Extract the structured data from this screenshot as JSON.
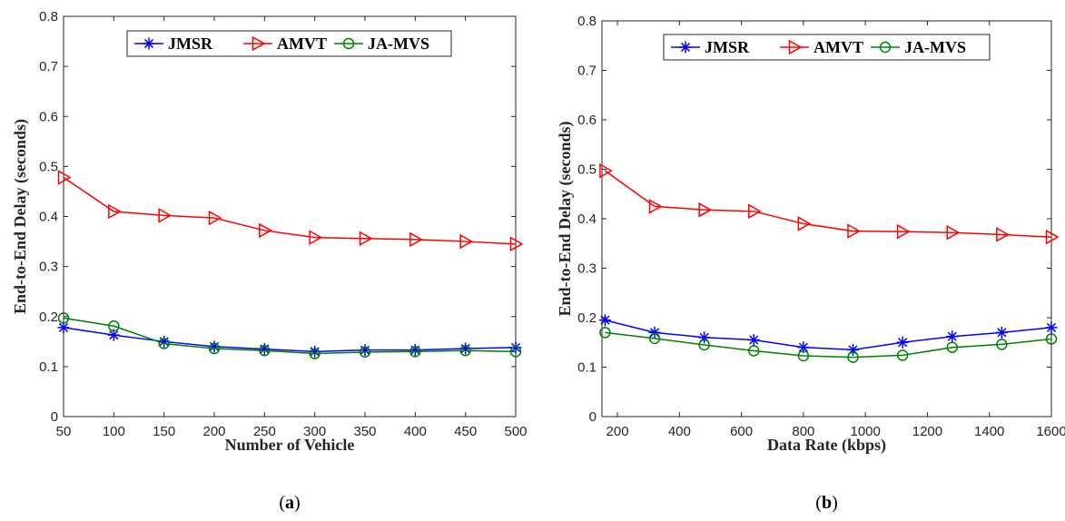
{
  "chart_data": [
    {
      "type": "line",
      "panel_label": "a",
      "xlabel": "Number of Vehicle",
      "ylabel": "End-to-End Delay (seconds)",
      "xlim": [
        50,
        500
      ],
      "ylim": [
        0,
        0.8
      ],
      "xticks": [
        50,
        100,
        150,
        200,
        250,
        300,
        350,
        400,
        450,
        500
      ],
      "yticks": [
        0,
        0.1,
        0.2,
        0.3,
        0.4,
        0.5,
        0.6,
        0.7,
        0.8
      ],
      "legend_position": "top-center",
      "x": [
        50,
        100,
        150,
        200,
        250,
        300,
        350,
        400,
        450,
        500
      ],
      "series": [
        {
          "name": "JMSR",
          "color": "#0000ff",
          "marker": "asterisk",
          "values": [
            0.178,
            0.163,
            0.15,
            0.14,
            0.135,
            0.13,
            0.133,
            0.133,
            0.136,
            0.138
          ]
        },
        {
          "name": "AMVT",
          "color": "#ff0000",
          "marker": "triangle-right",
          "values": [
            0.478,
            0.41,
            0.402,
            0.397,
            0.372,
            0.358,
            0.356,
            0.354,
            0.35,
            0.345
          ]
        },
        {
          "name": "JA-MVS",
          "color": "#008000",
          "marker": "circle",
          "values": [
            0.197,
            0.181,
            0.146,
            0.136,
            0.132,
            0.126,
            0.129,
            0.13,
            0.132,
            0.13
          ]
        }
      ]
    },
    {
      "type": "line",
      "panel_label": "b",
      "xlabel": "Data Rate (kbps)",
      "ylabel": "End-to-End Delay (seconds)",
      "xlim": [
        150,
        1600
      ],
      "ylim": [
        0,
        0.8
      ],
      "xticks": [
        200,
        400,
        600,
        800,
        1000,
        1200,
        1400,
        1600
      ],
      "xtick_labels": [
        "200",
        "400",
        "600",
        "800",
        "1000",
        "1200",
        "1400",
        "1600"
      ],
      "yticks": [
        0,
        0.1,
        0.2,
        0.3,
        0.4,
        0.5,
        0.6,
        0.7,
        0.8
      ],
      "legend_position": "top-center",
      "x": [
        160,
        320,
        480,
        640,
        800,
        960,
        1120,
        1280,
        1440,
        1600
      ],
      "series": [
        {
          "name": "JMSR",
          "color": "#0000ff",
          "marker": "asterisk",
          "values": [
            0.195,
            0.17,
            0.16,
            0.155,
            0.14,
            0.135,
            0.15,
            0.162,
            0.17,
            0.18
          ]
        },
        {
          "name": "AMVT",
          "color": "#ff0000",
          "marker": "triangle-right",
          "values": [
            0.497,
            0.425,
            0.418,
            0.415,
            0.39,
            0.375,
            0.374,
            0.372,
            0.368,
            0.363
          ]
        },
        {
          "name": "JA-MVS",
          "color": "#008000",
          "marker": "circle",
          "values": [
            0.17,
            0.158,
            0.145,
            0.133,
            0.123,
            0.12,
            0.124,
            0.14,
            0.146,
            0.157
          ]
        }
      ]
    }
  ]
}
